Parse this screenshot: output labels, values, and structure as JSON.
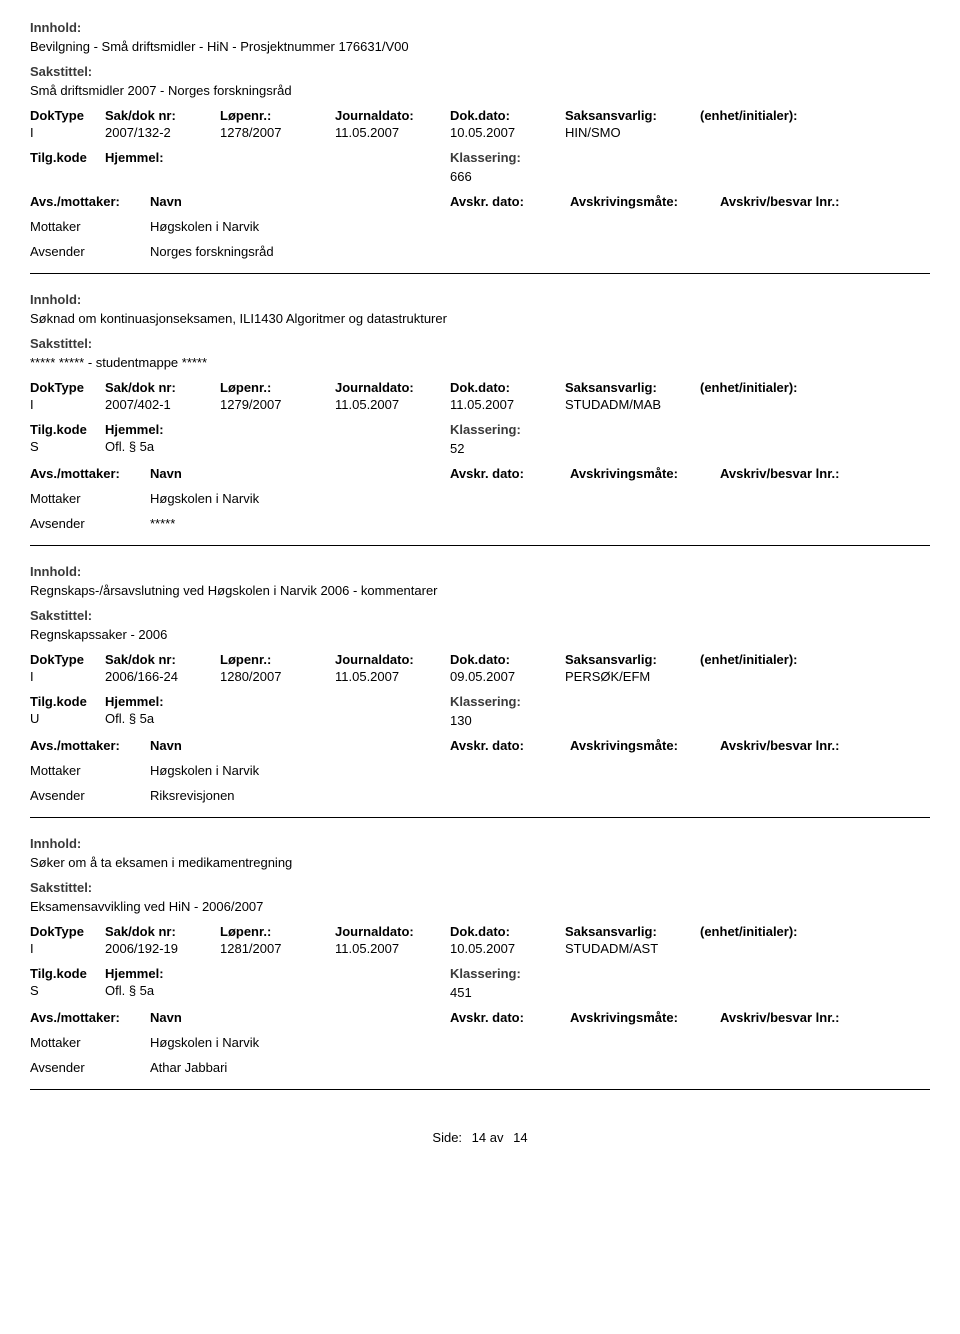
{
  "labels": {
    "innhold": "Innhold:",
    "sakstittel": "Sakstittel:",
    "doktype": "DokType",
    "sakdok": "Sak/dok nr:",
    "lopenr": "Løpenr.:",
    "journaldato": "Journaldato:",
    "dokdato": "Dok.dato:",
    "saksansvarlig": "Saksansvarlig:",
    "enhet": "(enhet/initialer):",
    "tilgkode": "Tilg.kode",
    "hjemmel": "Hjemmel:",
    "klassering": "Klassering:",
    "avsmottaker": "Avs./mottaker:",
    "navn": "Navn",
    "avskrdato": "Avskr. dato:",
    "avskrivingsmate": "Avskrivingsmåte:",
    "avskrivbesvar": "Avskriv/besvar lnr.:",
    "mottaker": "Mottaker",
    "avsender": "Avsender",
    "side": "Side:"
  },
  "footer": {
    "page": "14 av",
    "total": "14"
  },
  "entries": [
    {
      "innhold": "Bevilgning - Små driftsmidler - HiN - Prosjektnummer 176631/V00",
      "sakstittel": "Små driftsmidler 2007 - Norges forskningsråd",
      "doktype": "I",
      "sakdok": "2007/132-2",
      "lopenr": "1278/2007",
      "journaldato": "11.05.2007",
      "dokdato": "10.05.2007",
      "saksansvarlig": "HIN/SMO",
      "tilgkode": "",
      "hjemmel": "",
      "klassering": "666",
      "showPartiesHeader": false,
      "mottaker": "Høgskolen i Narvik",
      "avsender": "Norges forskningsråd"
    },
    {
      "innhold": "Søknad om kontinuasjonseksamen, ILI1430 Algoritmer og datastrukturer",
      "sakstittel": "***** ***** - studentmappe *****",
      "doktype": "I",
      "sakdok": "2007/402-1",
      "lopenr": "1279/2007",
      "journaldato": "11.05.2007",
      "dokdato": "11.05.2007",
      "saksansvarlig": "STUDADM/MAB",
      "tilgkode": "S",
      "hjemmel": "Ofl. § 5a",
      "klassering": "52",
      "showPartiesHeader": false,
      "mottaker": "Høgskolen i Narvik",
      "avsender": "*****"
    },
    {
      "innhold": "Regnskaps-/årsavslutning ved Høgskolen i Narvik 2006 - kommentarer",
      "sakstittel": "Regnskapssaker - 2006",
      "doktype": "I",
      "sakdok": "2006/166-24",
      "lopenr": "1280/2007",
      "journaldato": "11.05.2007",
      "dokdato": "09.05.2007",
      "saksansvarlig": "PERSØK/EFM",
      "tilgkode": "U",
      "hjemmel": "Ofl. § 5a",
      "klassering": "130",
      "showPartiesHeader": true,
      "mottaker": "Høgskolen i Narvik",
      "avsender": "Riksrevisjonen"
    },
    {
      "innhold": "Søker om å ta eksamen i medikamentregning",
      "sakstittel": "Eksamensavvikling ved HiN - 2006/2007",
      "doktype": "I",
      "sakdok": "2006/192-19",
      "lopenr": "1281/2007",
      "journaldato": "11.05.2007",
      "dokdato": "10.05.2007",
      "saksansvarlig": "STUDADM/AST",
      "tilgkode": "S",
      "hjemmel": "Ofl. § 5a",
      "klassering": "451",
      "showPartiesHeader": true,
      "mottaker": "Høgskolen i Narvik",
      "avsender": "Athar Jabbari"
    }
  ]
}
